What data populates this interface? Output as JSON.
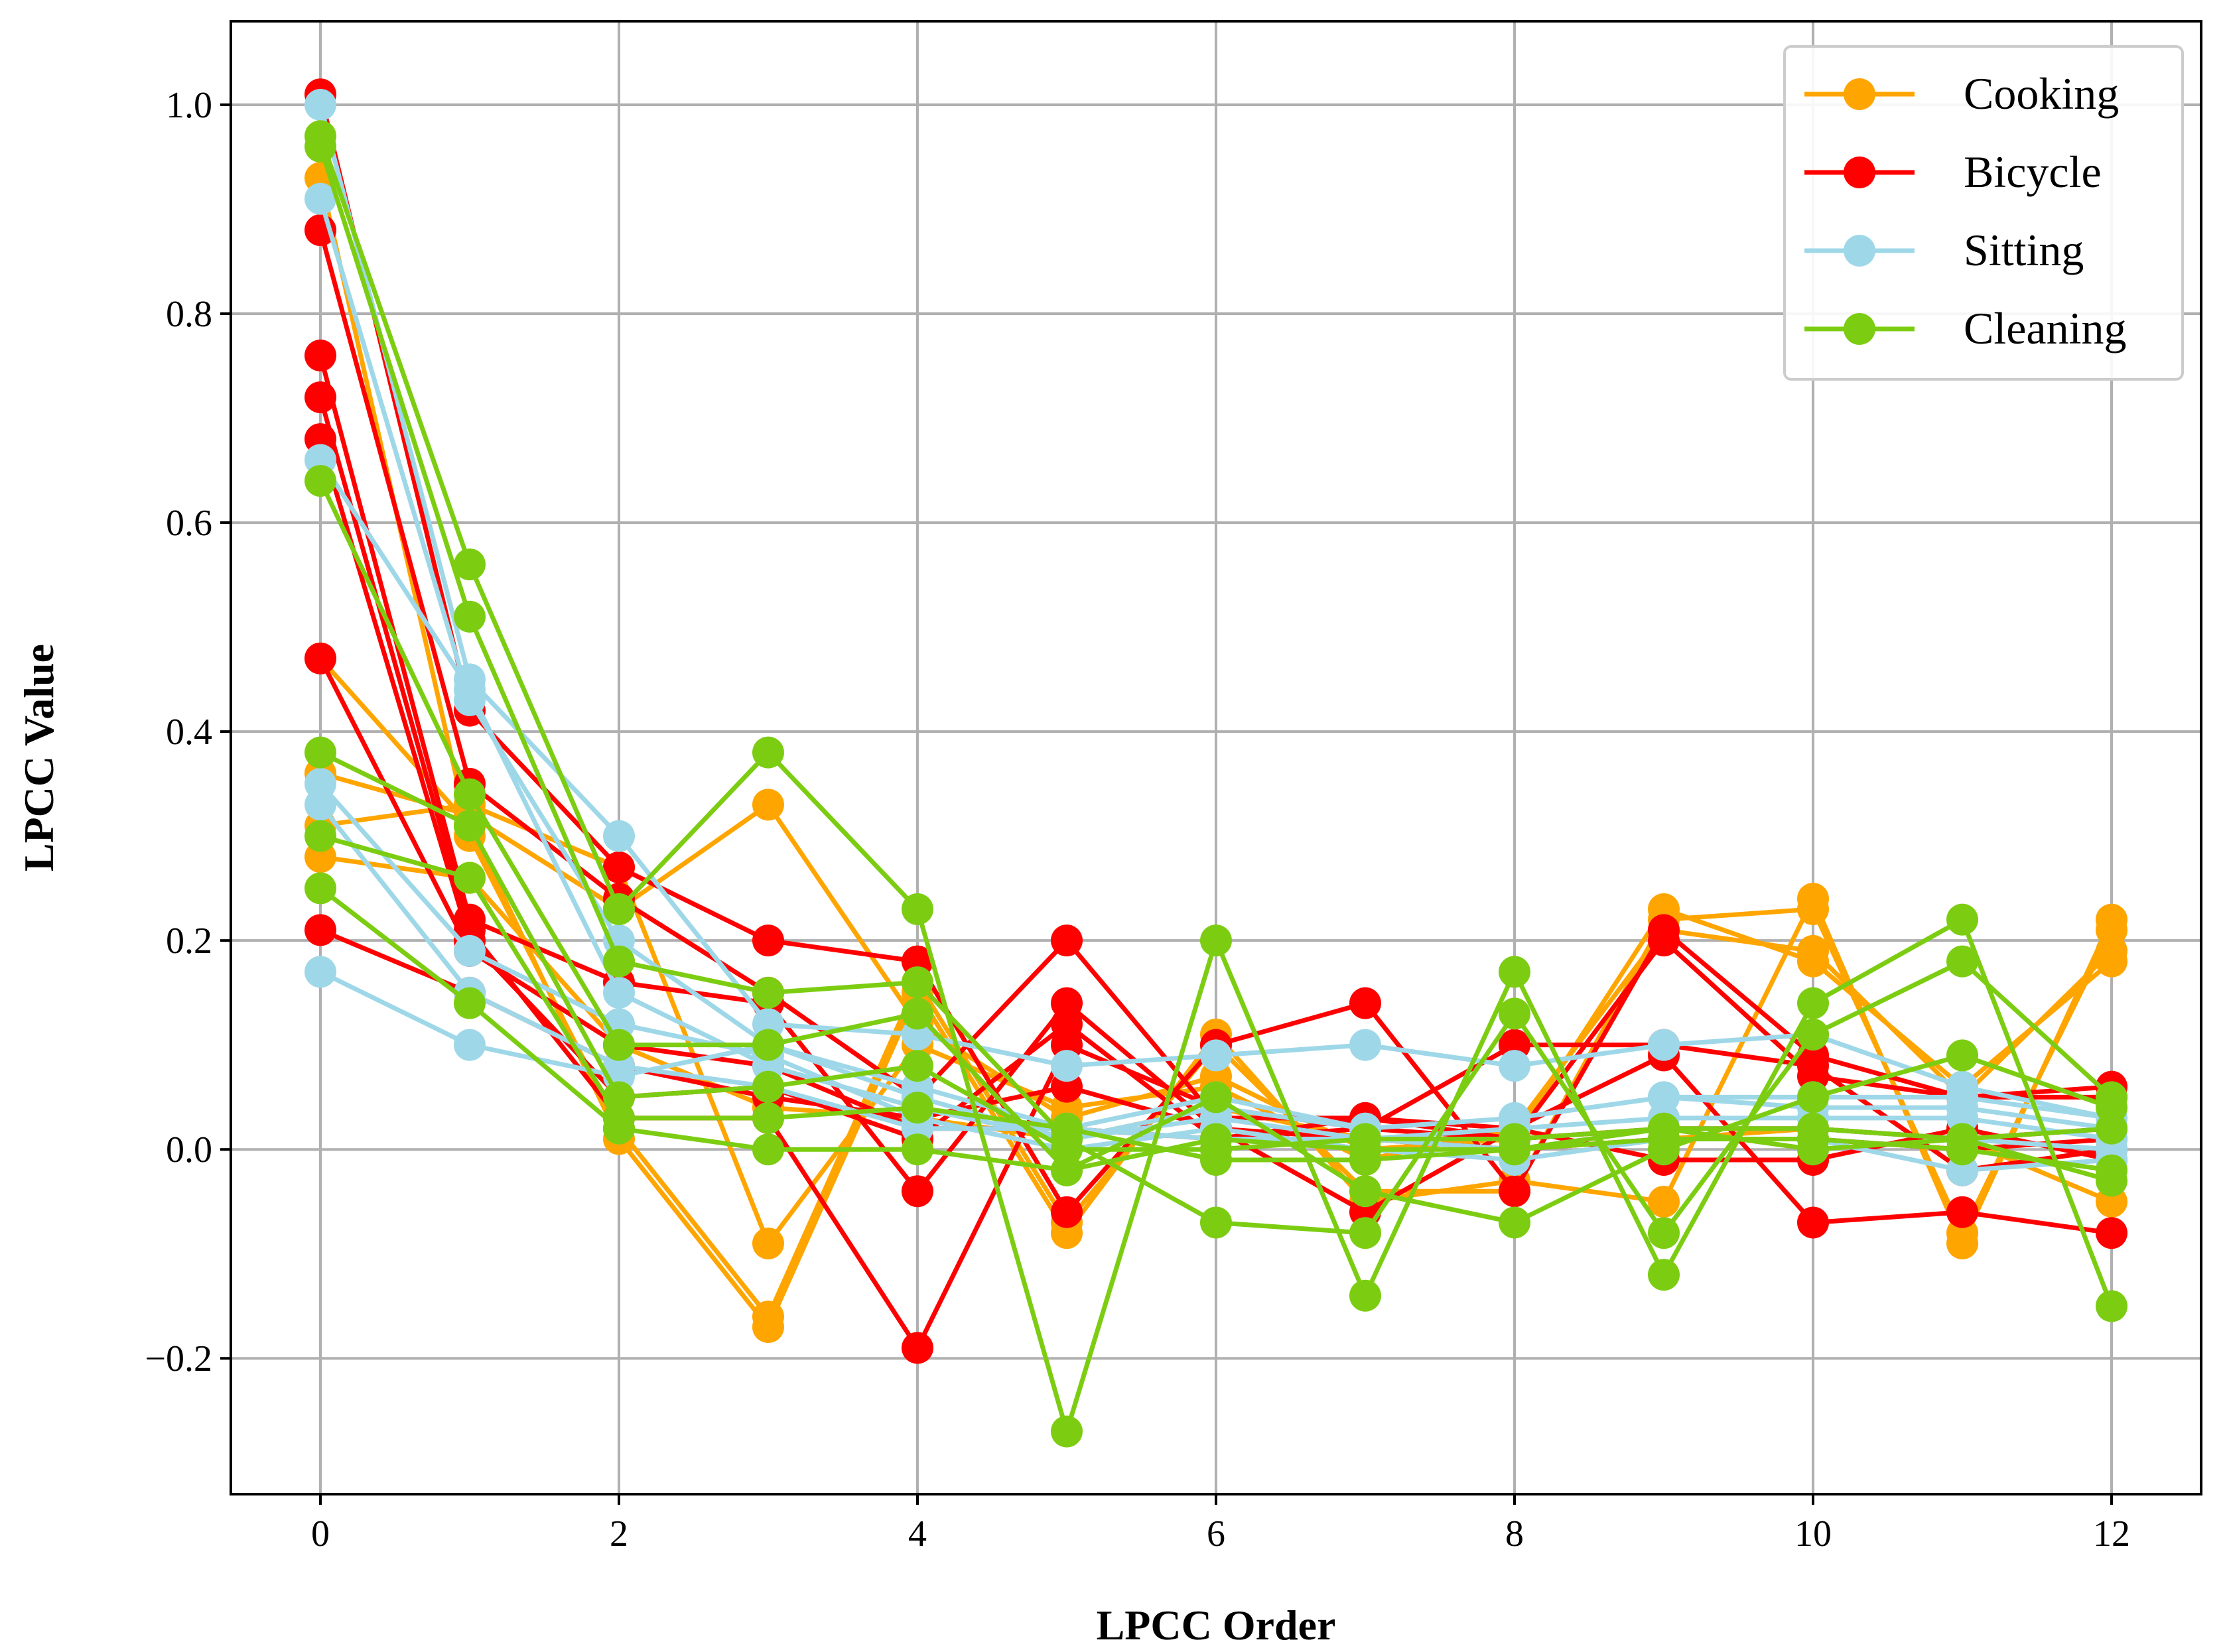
{
  "chart_data": {
    "type": "line",
    "title": "",
    "xlabel": "LPCC Order",
    "ylabel": "LPCC Value",
    "xlim": [
      -0.6,
      12.6
    ],
    "ylim": [
      -0.33,
      1.08
    ],
    "xticks": [
      0,
      2,
      4,
      6,
      8,
      10,
      12
    ],
    "yticks": [
      -0.2,
      0.0,
      0.2,
      0.4,
      0.6,
      0.8,
      1.0
    ],
    "ytick_labels": [
      "−0.2",
      "0.0",
      "0.2",
      "0.4",
      "0.6",
      "0.8",
      "1.0"
    ],
    "grid": true,
    "legend_position": "top-right",
    "x": [
      0,
      1,
      2,
      3,
      4,
      5,
      6,
      7,
      8,
      9,
      10,
      11,
      12
    ],
    "classes": [
      {
        "name": "Cooking",
        "color": "#FFA500",
        "series": [
          [
            0.93,
            0.3,
            0.02,
            -0.16,
            0.16,
            -0.07,
            0.1,
            -0.04,
            -0.04,
            0.22,
            0.23,
            -0.08,
            0.21
          ],
          [
            0.47,
            0.31,
            0.01,
            -0.17,
            0.15,
            -0.08,
            0.11,
            -0.05,
            -0.03,
            -0.05,
            0.24,
            -0.09,
            0.22
          ],
          [
            0.36,
            0.32,
            0.23,
            0.33,
            0.12,
            0.03,
            0.07,
            0.0,
            0.01,
            0.23,
            0.18,
            0.06,
            0.18
          ],
          [
            0.31,
            0.33,
            0.27,
            -0.09,
            0.1,
            0.04,
            0.06,
            -0.01,
            0.02,
            0.21,
            0.19,
            0.05,
            0.19
          ],
          [
            0.28,
            0.26,
            0.1,
            0.04,
            0.03,
            0.01,
            0.04,
            0.01,
            0.0,
            0.01,
            0.02,
            0.01,
            -0.05
          ]
        ]
      },
      {
        "name": "Bicycle",
        "color": "#FF0000",
        "series": [
          [
            1.01,
            0.42,
            0.27,
            0.2,
            0.18,
            -0.06,
            0.1,
            0.14,
            -0.04,
            0.21,
            0.09,
            0.05,
            0.06
          ],
          [
            0.88,
            0.35,
            0.24,
            0.15,
            0.05,
            0.2,
            0.03,
            0.03,
            0.01,
            0.2,
            0.07,
            0.05,
            0.05
          ],
          [
            0.76,
            0.22,
            0.16,
            0.14,
            -0.04,
            0.14,
            0.02,
            -0.06,
            0.02,
            0.09,
            -0.07,
            -0.06,
            -0.08
          ],
          [
            0.72,
            0.21,
            0.03,
            0.03,
            -0.19,
            0.1,
            0.04,
            0.02,
            0.1,
            0.1,
            0.08,
            -0.02,
            0.0
          ],
          [
            0.68,
            0.2,
            0.05,
            0.06,
            0.01,
            0.12,
            0.01,
            0.03,
            0.02,
            -0.01,
            -0.01,
            0.02,
            -0.01
          ],
          [
            0.47,
            0.19,
            0.1,
            0.08,
            0.02,
            0.02,
            0.01,
            0.02,
            0.01,
            0.02,
            0.02,
            0.01,
            0.02
          ],
          [
            0.21,
            0.15,
            0.08,
            0.05,
            0.03,
            0.06,
            0.02,
            0.01,
            0.0,
            0.01,
            0.01,
            0.0,
            0.01
          ]
        ]
      },
      {
        "name": "Sitting",
        "color": "#9ED8E8",
        "series": [
          [
            1.0,
            0.45,
            0.3,
            0.12,
            0.11,
            0.08,
            0.09,
            0.1,
            0.08,
            0.1,
            0.11,
            0.06,
            0.03
          ],
          [
            0.91,
            0.43,
            0.2,
            0.1,
            0.06,
            0.02,
            0.05,
            0.02,
            0.03,
            0.05,
            0.04,
            0.04,
            0.02
          ],
          [
            0.66,
            0.44,
            0.15,
            0.08,
            0.04,
            0.01,
            0.03,
            0.01,
            0.02,
            0.03,
            0.03,
            0.03,
            0.01
          ],
          [
            0.35,
            0.19,
            0.12,
            0.09,
            0.03,
            0.0,
            0.02,
            0.0,
            -0.01,
            0.01,
            0.01,
            -0.02,
            -0.01
          ],
          [
            0.33,
            0.15,
            0.08,
            0.06,
            0.02,
            0.02,
            0.01,
            0.01,
            0.0,
            0.02,
            0.02,
            0.01,
            0.0
          ],
          [
            0.17,
            0.1,
            0.07,
            0.1,
            0.05,
            0.01,
            0.04,
            0.02,
            0.03,
            0.05,
            0.05,
            0.05,
            0.03
          ]
        ]
      },
      {
        "name": "Cleaning",
        "color": "#7CCD12",
        "series": [
          [
            0.97,
            0.56,
            0.23,
            0.38,
            0.23,
            -0.27,
            0.2,
            -0.14,
            0.17,
            -0.12,
            0.14,
            0.22,
            -0.15
          ],
          [
            0.96,
            0.51,
            0.18,
            0.15,
            0.16,
            0.01,
            -0.07,
            -0.08,
            0.13,
            -0.08,
            0.11,
            0.18,
            0.05
          ],
          [
            0.64,
            0.34,
            0.1,
            0.1,
            0.13,
            -0.02,
            0.05,
            -0.04,
            -0.07,
            0.0,
            0.05,
            0.09,
            0.04
          ],
          [
            0.38,
            0.31,
            0.05,
            0.06,
            0.08,
            0.0,
            0.0,
            0.01,
            0.01,
            0.02,
            0.02,
            0.01,
            -0.03
          ],
          [
            0.3,
            0.26,
            0.03,
            0.03,
            0.04,
            0.02,
            -0.01,
            -0.01,
            0.0,
            0.01,
            0.01,
            0.0,
            -0.02
          ],
          [
            0.25,
            0.14,
            0.02,
            0.0,
            0.0,
            -0.02,
            0.01,
            0.0,
            0.0,
            0.02,
            0.0,
            0.01,
            0.02
          ]
        ]
      }
    ]
  }
}
